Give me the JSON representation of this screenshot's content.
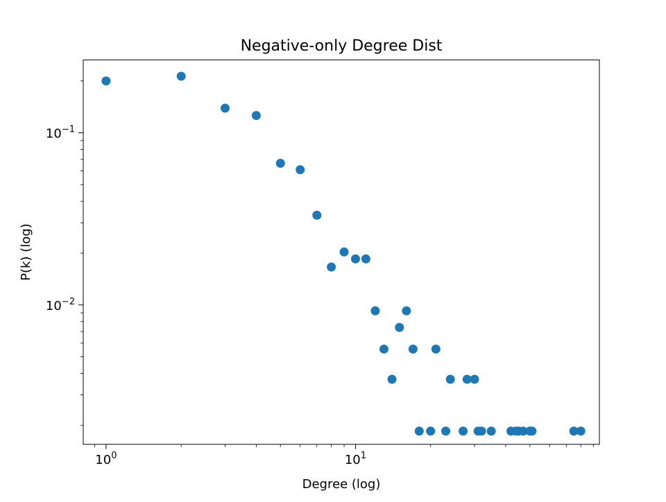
{
  "chart_data": {
    "type": "scatter",
    "title": "Negative-only Degree Dist",
    "xlabel": "Degree (log)",
    "ylabel": "P(k) (log)",
    "x_scale": "log",
    "y_scale": "log",
    "xlim": [
      0.81,
      95
    ],
    "ylim": [
      0.00155,
      0.265
    ],
    "x_major_ticks": [
      {
        "value": 1,
        "base": "10",
        "exp": "0"
      },
      {
        "value": 10,
        "base": "10",
        "exp": "1"
      }
    ],
    "y_major_ticks": [
      {
        "value": 0.1,
        "base": "10",
        "exp": "−1"
      },
      {
        "value": 0.01,
        "base": "10",
        "exp": "−2"
      }
    ],
    "grid": false,
    "color": "#1f77b4",
    "series": [
      {
        "points": [
          {
            "x": 1,
            "y": 0.2
          },
          {
            "x": 2,
            "y": 0.213
          },
          {
            "x": 3,
            "y": 0.139
          },
          {
            "x": 4,
            "y": 0.126
          },
          {
            "x": 5,
            "y": 0.0665
          },
          {
            "x": 6,
            "y": 0.061
          },
          {
            "x": 7,
            "y": 0.0332
          },
          {
            "x": 8,
            "y": 0.0166
          },
          {
            "x": 9,
            "y": 0.0203
          },
          {
            "x": 10,
            "y": 0.0185
          },
          {
            "x": 11,
            "y": 0.0185
          },
          {
            "x": 12,
            "y": 0.00924
          },
          {
            "x": 13,
            "y": 0.00554
          },
          {
            "x": 14,
            "y": 0.0037
          },
          {
            "x": 15,
            "y": 0.0074
          },
          {
            "x": 16,
            "y": 0.00924
          },
          {
            "x": 17,
            "y": 0.00554
          },
          {
            "x": 18,
            "y": 0.00185
          },
          {
            "x": 20,
            "y": 0.00185
          },
          {
            "x": 21,
            "y": 0.00554
          },
          {
            "x": 23,
            "y": 0.00185
          },
          {
            "x": 24,
            "y": 0.0037
          },
          {
            "x": 27,
            "y": 0.00185
          },
          {
            "x": 28,
            "y": 0.0037
          },
          {
            "x": 30,
            "y": 0.0037
          },
          {
            "x": 31,
            "y": 0.00185
          },
          {
            "x": 32,
            "y": 0.00185
          },
          {
            "x": 35,
            "y": 0.00185
          },
          {
            "x": 42,
            "y": 0.00185
          },
          {
            "x": 44,
            "y": 0.00185
          },
          {
            "x": 45,
            "y": 0.00185
          },
          {
            "x": 47,
            "y": 0.00185
          },
          {
            "x": 50,
            "y": 0.00185
          },
          {
            "x": 51,
            "y": 0.00185
          },
          {
            "x": 75,
            "y": 0.00185
          },
          {
            "x": 80,
            "y": 0.00185
          }
        ]
      }
    ]
  }
}
